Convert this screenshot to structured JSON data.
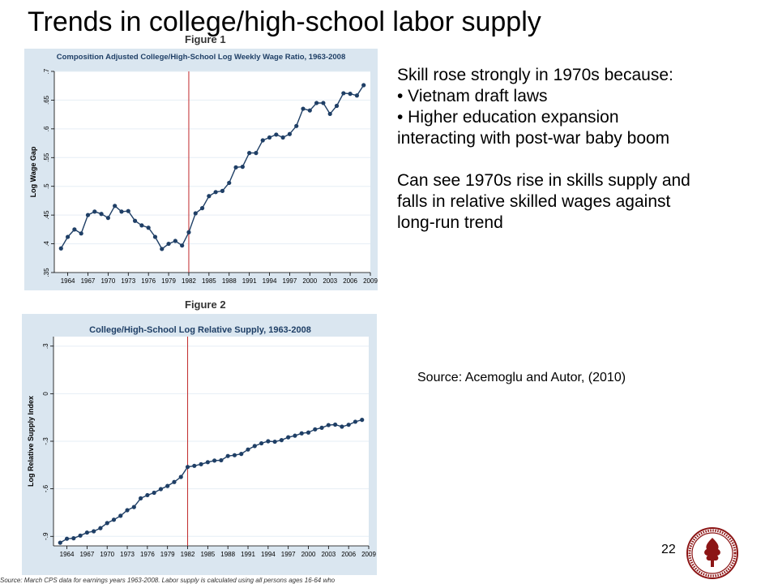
{
  "slide": {
    "title": "Trends in college/high-school labor supply",
    "page_number": "22"
  },
  "text_block": {
    "lines": [
      "Skill rose strongly in 1970s because:",
      "• Vietnam draft laws",
      "• Higher education expansion",
      "interacting with post-war baby boom",
      "",
      "Can see 1970s rise in skills supply and",
      "falls in relative skilled wages against",
      "long-run trend"
    ]
  },
  "source": "Source: Acemoglu and Autor, (2010)",
  "footnote": "Source: March CPS data for earnings years 1963-2008. Labor supply is calculated using all persons ages 16-64 who",
  "logo": {
    "icon": "stanford-seal-icon",
    "color": "#8c1515"
  },
  "colors": {
    "series": "#1f3f66",
    "reference_line": "#c0292c",
    "panel": "#dae6f0",
    "plot_bg": "#ffffff"
  },
  "chart_data": [
    {
      "figure_label": "Figure 1",
      "type": "line",
      "title": "Composition Adjusted College/High-School Log Weekly Wage Ratio, 1963-2008",
      "xlabel": "",
      "ylabel": "Log Wage Gap",
      "xlim": [
        1962,
        2009
      ],
      "ylim": [
        0.35,
        0.7
      ],
      "xticks": [
        1964,
        1967,
        1970,
        1973,
        1976,
        1979,
        1982,
        1985,
        1988,
        1991,
        1994,
        1997,
        2000,
        2003,
        2006,
        2009
      ],
      "yticks": [
        0.35,
        0.4,
        0.45,
        0.5,
        0.55,
        0.6,
        0.65,
        0.7
      ],
      "ytick_labels": [
        ".35",
        ".4",
        ".45",
        ".5",
        ".55",
        ".6",
        ".65",
        ".7"
      ],
      "vline": 1982,
      "grid": "horizontal",
      "x": [
        1963,
        1964,
        1965,
        1966,
        1967,
        1968,
        1969,
        1970,
        1971,
        1972,
        1973,
        1974,
        1975,
        1976,
        1977,
        1978,
        1979,
        1980,
        1981,
        1982,
        1983,
        1984,
        1985,
        1986,
        1987,
        1988,
        1989,
        1990,
        1991,
        1992,
        1993,
        1994,
        1995,
        1996,
        1997,
        1998,
        1999,
        2000,
        2001,
        2002,
        2003,
        2004,
        2005,
        2006,
        2007,
        2008
      ],
      "y": [
        0.392,
        0.412,
        0.425,
        0.418,
        0.45,
        0.456,
        0.452,
        0.445,
        0.466,
        0.456,
        0.457,
        0.44,
        0.432,
        0.428,
        0.412,
        0.391,
        0.4,
        0.405,
        0.397,
        0.42,
        0.453,
        0.462,
        0.483,
        0.49,
        0.492,
        0.506,
        0.533,
        0.534,
        0.558,
        0.558,
        0.58,
        0.585,
        0.59,
        0.585,
        0.591,
        0.605,
        0.635,
        0.632,
        0.645,
        0.645,
        0.626,
        0.64,
        0.662,
        0.661,
        0.658,
        0.676
      ]
    },
    {
      "figure_label": "Figure 2",
      "type": "line",
      "title": "College/High-School Log Relative Supply, 1963-2008",
      "xlabel": "",
      "ylabel": "Log Relative Supply Index",
      "xlim": [
        1962,
        2009
      ],
      "ylim": [
        -0.96,
        0.36
      ],
      "xticks": [
        1964,
        1967,
        1970,
        1973,
        1976,
        1979,
        1982,
        1985,
        1988,
        1991,
        1994,
        1997,
        2000,
        2003,
        2006,
        2009
      ],
      "yticks": [
        -0.9,
        -0.6,
        -0.3,
        0,
        0.3
      ],
      "ytick_labels": [
        "-.9",
        "-.6",
        "-.3",
        "0",
        ".3"
      ],
      "vline": 1982,
      "grid": "horizontal",
      "x": [
        1963,
        1964,
        1965,
        1966,
        1967,
        1968,
        1969,
        1970,
        1971,
        1972,
        1973,
        1974,
        1975,
        1976,
        1977,
        1978,
        1979,
        1980,
        1981,
        1982,
        1983,
        1984,
        1985,
        1986,
        1987,
        1988,
        1989,
        1990,
        1991,
        1992,
        1993,
        1994,
        1995,
        1996,
        1997,
        1998,
        1999,
        2000,
        2001,
        2002,
        2003,
        2004,
        2005,
        2006,
        2007,
        2008
      ],
      "y": [
        -0.94,
        -0.915,
        -0.912,
        -0.895,
        -0.876,
        -0.868,
        -0.848,
        -0.816,
        -0.795,
        -0.77,
        -0.735,
        -0.715,
        -0.66,
        -0.64,
        -0.625,
        -0.602,
        -0.582,
        -0.557,
        -0.525,
        -0.462,
        -0.455,
        -0.445,
        -0.432,
        -0.422,
        -0.42,
        -0.393,
        -0.388,
        -0.38,
        -0.352,
        -0.33,
        -0.313,
        -0.3,
        -0.303,
        -0.293,
        -0.275,
        -0.265,
        -0.25,
        -0.245,
        -0.225,
        -0.215,
        -0.198,
        -0.195,
        -0.208,
        -0.196,
        -0.177,
        -0.165
      ]
    }
  ]
}
